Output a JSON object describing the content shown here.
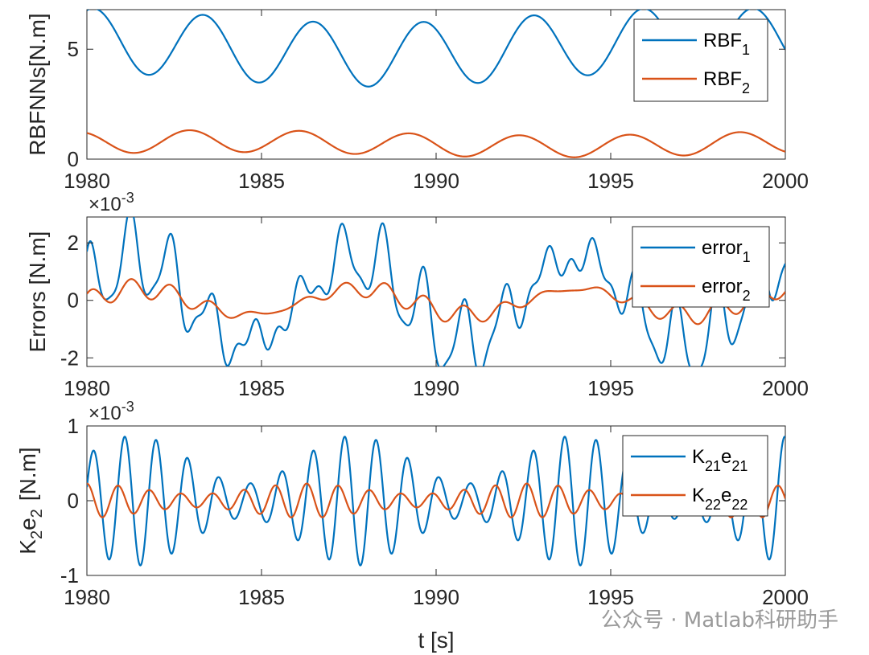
{
  "chart_data": [
    {
      "type": "line",
      "ylabel": "RBFNNs[N.m]",
      "xlabel": "",
      "xlim": [
        1980,
        2000
      ],
      "ylim": [
        0,
        6.8
      ],
      "xticks": [
        1980,
        1985,
        1990,
        1995,
        2000
      ],
      "yticks": [
        0,
        5
      ],
      "ytick_labels": [
        "0",
        "5"
      ],
      "multiplier": "",
      "legend_position": "top-right",
      "series": [
        {
          "name": "RBF",
          "sub": "1",
          "color": "#0072BD",
          "model": {
            "offset": 5.1,
            "terms": [
              [
                1.45,
                3.15,
                1.2
              ],
              [
                0.35,
                18.9,
                2.0
              ]
            ]
          }
        },
        {
          "name": "RBF",
          "sub": "2",
          "color": "#D95319",
          "model": {
            "offset": 0.7,
            "terms": [
              [
                0.5,
                3.15,
                2.0
              ],
              [
                0.12,
                18.9,
                0.3
              ]
            ]
          }
        }
      ]
    },
    {
      "type": "line",
      "ylabel": "Errors [N.m]",
      "xlabel": "",
      "xlim": [
        1980,
        2000
      ],
      "ylim": [
        -2.3,
        2.9
      ],
      "xticks": [
        1980,
        1985,
        1990,
        1995,
        2000
      ],
      "yticks": [
        -2,
        0,
        2
      ],
      "ytick_labels": [
        "-2",
        "0",
        "2"
      ],
      "multiplier": "×10-3",
      "legend_position": "top-right",
      "series": [
        {
          "name": "error",
          "sub": "1",
          "color": "#0072BD",
          "model": {
            "offset": 0.0,
            "terms": [
              [
                1.5,
                6.3,
                0.2
              ],
              [
                0.5,
                1.05,
                0.5
              ],
              [
                0.9,
                1.2,
                1.4
              ],
              [
                0.35,
                0.6,
                0.9
              ]
            ]
          }
        },
        {
          "name": "error",
          "sub": "2",
          "color": "#D95319",
          "model": {
            "offset": -0.05,
            "terms": [
              [
                0.45,
                6.3,
                0.1
              ],
              [
                0.15,
                1.05,
                0.3
              ],
              [
                0.2,
                1.2,
                1.2
              ]
            ]
          }
        }
      ]
    },
    {
      "type": "line",
      "ylabel": "K2e2 [N.m]",
      "xlabel": "t [s]",
      "xlim": [
        1980,
        2000
      ],
      "ylim": [
        -1,
        1
      ],
      "xticks": [
        1980,
        1985,
        1990,
        1995,
        2000
      ],
      "yticks": [
        -1,
        0,
        1
      ],
      "ytick_labels": [
        "-1",
        "0",
        "1"
      ],
      "multiplier": "×10-3",
      "legend_position": "top-right",
      "series": [
        {
          "name": "K",
          "sub": "21",
          "name2": "e",
          "sub2": "21",
          "color": "#0072BD",
          "model": {
            "envelope": [
              0.55,
              0.32,
              6.3,
              0.2
            ],
            "carrier": 0.9,
            "phase": 0.3
          }
        },
        {
          "name": "K",
          "sub": "22",
          "name2": "e",
          "sub2": "22",
          "color": "#D95319",
          "model": {
            "envelope": [
              0.16,
              0.07,
              6.3,
              1.6
            ],
            "carrier": 0.9,
            "phase": 1.6
          }
        }
      ]
    }
  ],
  "panel3_ylabel_parts": {
    "k": "K",
    "ksub": "2",
    "e": "e",
    "esub": "2",
    "unit": "[N.m]"
  },
  "multiplier_parts": {
    "base": "×10",
    "exp": "-3"
  },
  "watermark": "公众号 · Matlab科研助手"
}
